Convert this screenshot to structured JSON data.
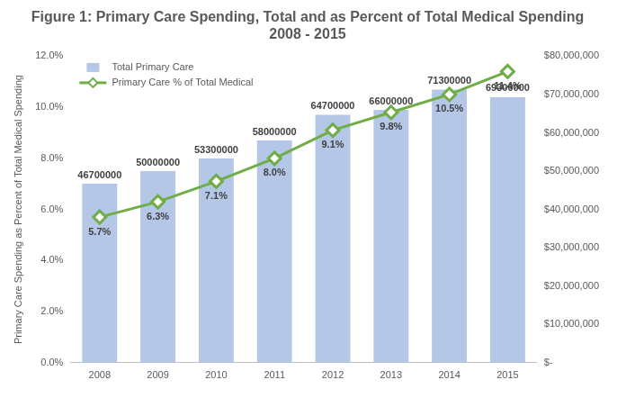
{
  "chart_data": {
    "type": "bar",
    "title": [
      "Figure 1: Primary Care Spending, Total and as Percent of Total Medical Spending",
      "2008 - 2015"
    ],
    "y_label": "Primary Care Spending as Percent of Total Medical Spending",
    "categories": [
      "2008",
      "2009",
      "2010",
      "2011",
      "2012",
      "2013",
      "2014",
      "2015"
    ],
    "series": [
      {
        "name": "Total Primary Care",
        "type": "bar",
        "color": "#b4c7e7",
        "axis": "y2",
        "values": [
          46700000,
          50000000,
          53300000,
          58000000,
          64700000,
          66000000,
          71300000,
          69300000
        ]
      },
      {
        "name": "Primary Care % of Total Medical",
        "type": "line",
        "color": "#70ad47",
        "marker": "diamond",
        "axis": "y",
        "values": [
          5.7,
          6.3,
          7.1,
          8.0,
          9.1,
          9.8,
          10.5,
          11.4
        ],
        "value_labels": [
          "5.7%",
          "6.3%",
          "7.1%",
          "8.0%",
          "9.1%",
          "9.8%",
          "10.5%",
          "11.4%"
        ]
      }
    ],
    "ylim": [
      0,
      12
    ],
    "yticks": [
      {
        "value": 0,
        "label": "0.0%"
      },
      {
        "value": 2,
        "label": "2.0%"
      },
      {
        "value": 4,
        "label": "4.0%"
      },
      {
        "value": 6,
        "label": "6.0%"
      },
      {
        "value": 8,
        "label": "8.0%"
      },
      {
        "value": 10,
        "label": "10.0%"
      },
      {
        "value": 12,
        "label": "12.0%"
      }
    ],
    "y2lim": [
      0,
      80000000
    ],
    "y2ticks": [
      {
        "value": 0,
        "label": "$-"
      },
      {
        "value": 10000000,
        "label": "$10,000,000"
      },
      {
        "value": 20000000,
        "label": "$20,000,000"
      },
      {
        "value": 30000000,
        "label": "$30,000,000"
      },
      {
        "value": 40000000,
        "label": "$40,000,000"
      },
      {
        "value": 50000000,
        "label": "$50,000,000"
      },
      {
        "value": 60000000,
        "label": "$60,000,000"
      },
      {
        "value": 70000000,
        "label": "$70,000,000"
      },
      {
        "value": 80000000,
        "label": "$80,000,000"
      }
    ],
    "grid": false,
    "legend": "upper left",
    "data_labels": true
  }
}
